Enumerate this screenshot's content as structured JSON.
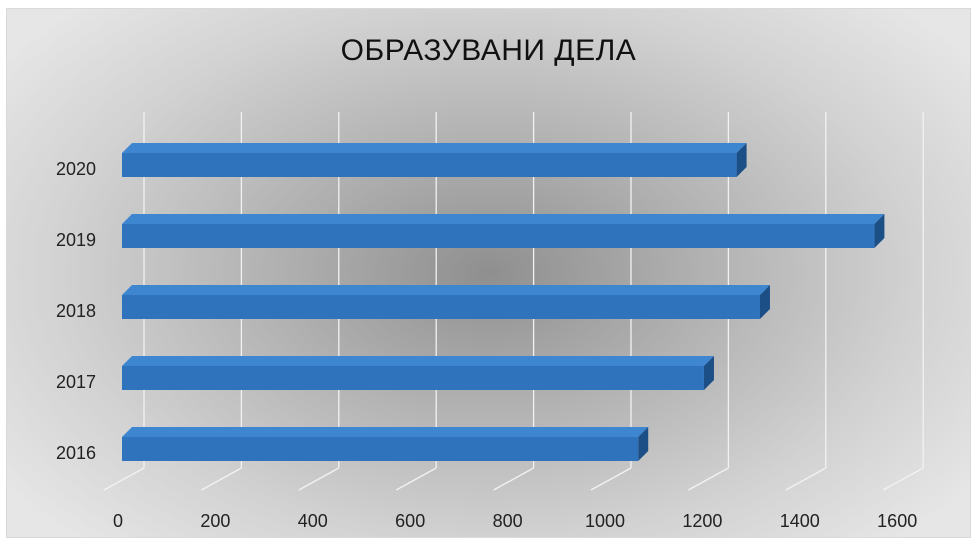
{
  "chart_data": {
    "type": "bar",
    "orientation": "horizontal",
    "title": "ОБРАЗУВАНИ ДЕЛА",
    "categories": [
      "2016",
      "2017",
      "2018",
      "2019",
      "2020"
    ],
    "values": [
      1060,
      1195,
      1310,
      1545,
      1262
    ],
    "xticks": [
      "0",
      "200",
      "400",
      "600",
      "800",
      "1000",
      "1200",
      "1400",
      "1600"
    ],
    "xlim": [
      0,
      1600
    ],
    "grid": true,
    "legend": false,
    "colors": {
      "bar": "#2f73bd",
      "bar_top": "#3f86d0",
      "bar_side": "#1c4f86",
      "grid": "#f2f2f2",
      "text": "#111111"
    }
  }
}
